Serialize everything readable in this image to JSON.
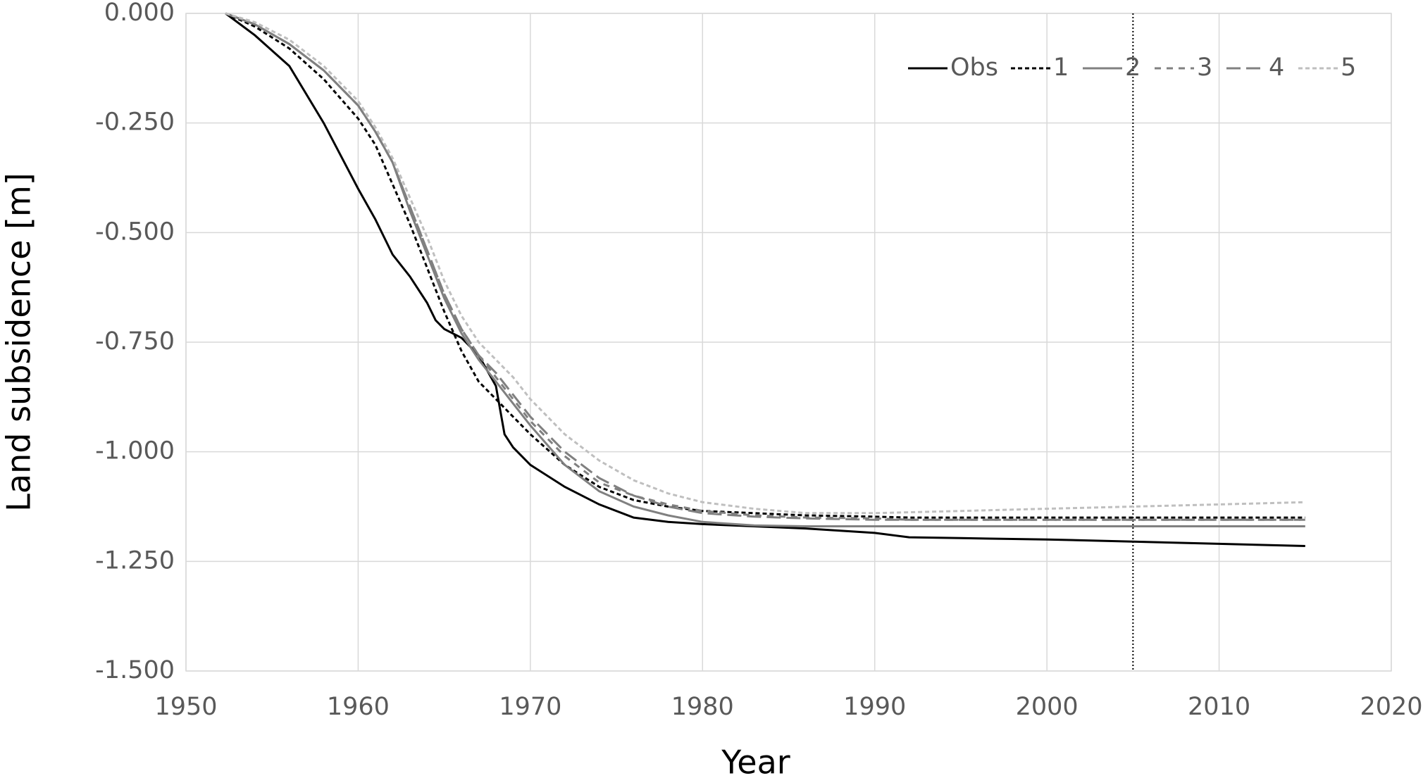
{
  "chart_data": {
    "type": "line",
    "xlabel": "Year",
    "ylabel": "Land subsidence [m]",
    "x": [
      1952.3,
      1954,
      1956,
      1958,
      1960,
      1961,
      1962,
      1963,
      1964,
      1964.5,
      1965,
      1966,
      1967,
      1968,
      1968.5,
      1969,
      1970,
      1972,
      1974,
      1976,
      1978,
      1980,
      1983,
      1986,
      1990,
      1992,
      1995,
      2000,
      2005,
      2010,
      2015
    ],
    "series": [
      {
        "name": "Obs",
        "color": "#000000",
        "dash": "solid",
        "values": [
          0,
          -0.05,
          -0.12,
          -0.25,
          -0.4,
          -0.47,
          -0.55,
          -0.6,
          -0.66,
          -0.7,
          -0.72,
          -0.74,
          -0.78,
          -0.85,
          -0.96,
          -0.99,
          -1.03,
          -1.08,
          -1.12,
          -1.15,
          -1.16,
          -1.165,
          -1.17,
          -1.175,
          -1.185,
          -1.195,
          -1.197,
          -1.2,
          -1.205,
          -1.21,
          -1.215
        ]
      },
      {
        "name": "1",
        "color": "#000000",
        "dash": "dot",
        "values": [
          0,
          -0.03,
          -0.08,
          -0.15,
          -0.24,
          -0.3,
          -0.39,
          -0.48,
          -0.58,
          -0.63,
          -0.68,
          -0.77,
          -0.84,
          -0.88,
          -0.9,
          -0.92,
          -0.96,
          -1.03,
          -1.08,
          -1.11,
          -1.125,
          -1.135,
          -1.14,
          -1.145,
          -1.148,
          -1.15,
          -1.15,
          -1.15,
          -1.15,
          -1.15,
          -1.15
        ]
      },
      {
        "name": "2",
        "color": "#808080",
        "dash": "solid",
        "values": [
          0,
          -0.025,
          -0.07,
          -0.13,
          -0.21,
          -0.27,
          -0.34,
          -0.45,
          -0.55,
          -0.6,
          -0.65,
          -0.73,
          -0.79,
          -0.84,
          -0.865,
          -0.89,
          -0.94,
          -1.03,
          -1.09,
          -1.125,
          -1.145,
          -1.16,
          -1.168,
          -1.17,
          -1.17,
          -1.17,
          -1.17,
          -1.17,
          -1.17,
          -1.17,
          -1.17
        ]
      },
      {
        "name": "3",
        "color": "#808080",
        "dash": "dash",
        "values": [
          0,
          -0.025,
          -0.07,
          -0.13,
          -0.21,
          -0.27,
          -0.34,
          -0.44,
          -0.54,
          -0.59,
          -0.64,
          -0.72,
          -0.78,
          -0.83,
          -0.855,
          -0.88,
          -0.93,
          -1.01,
          -1.07,
          -1.1,
          -1.12,
          -1.135,
          -1.145,
          -1.15,
          -1.152,
          -1.155,
          -1.155,
          -1.155,
          -1.155,
          -1.155,
          -1.155
        ]
      },
      {
        "name": "4",
        "color": "#808080",
        "dash": "longdash",
        "values": [
          0,
          -0.025,
          -0.07,
          -0.13,
          -0.21,
          -0.27,
          -0.34,
          -0.44,
          -0.54,
          -0.59,
          -0.64,
          -0.72,
          -0.78,
          -0.82,
          -0.845,
          -0.87,
          -0.92,
          -1.0,
          -1.06,
          -1.1,
          -1.125,
          -1.14,
          -1.148,
          -1.152,
          -1.155,
          -1.155,
          -1.155,
          -1.155,
          -1.155,
          -1.155,
          -1.155
        ]
      },
      {
        "name": "5",
        "color": "#bfbfbf",
        "dash": "dot",
        "values": [
          0,
          -0.02,
          -0.06,
          -0.12,
          -0.2,
          -0.26,
          -0.33,
          -0.42,
          -0.51,
          -0.56,
          -0.61,
          -0.69,
          -0.75,
          -0.79,
          -0.81,
          -0.83,
          -0.88,
          -0.96,
          -1.02,
          -1.065,
          -1.095,
          -1.115,
          -1.13,
          -1.14,
          -1.14,
          -1.138,
          -1.135,
          -1.13,
          -1.125,
          -1.12,
          -1.115
        ]
      }
    ],
    "vline_x": 2005,
    "xlim": [
      1950,
      2020
    ],
    "xticks": [
      1950,
      1960,
      1970,
      1980,
      1990,
      2000,
      2010,
      2020
    ],
    "ylim": [
      -1.5,
      0
    ],
    "yticks": [
      {
        "value": 0,
        "label": "0.000"
      },
      {
        "value": -0.25,
        "label": "-0.250"
      },
      {
        "value": -0.5,
        "label": "-0.500"
      },
      {
        "value": -0.75,
        "label": "-0.750"
      },
      {
        "value": -1,
        "label": "-1.000"
      },
      {
        "value": -1.25,
        "label": "-1.250"
      },
      {
        "value": -1.5,
        "label": "-1.500"
      }
    ],
    "grid": true,
    "legend": "top-right"
  }
}
